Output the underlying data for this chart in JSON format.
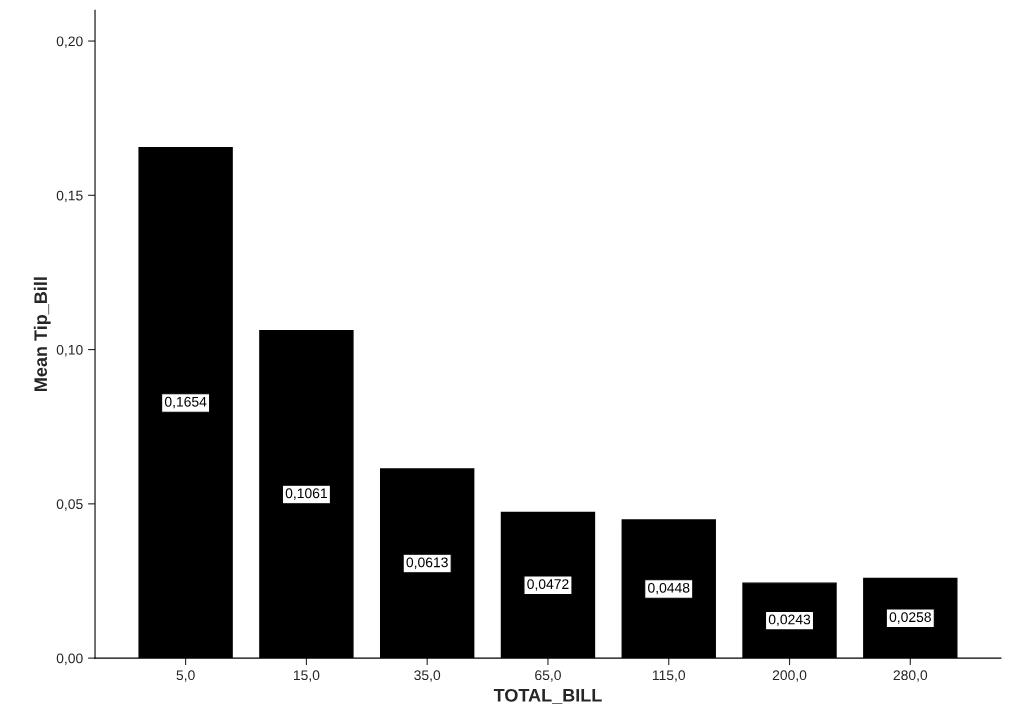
{
  "chart_data": {
    "type": "bar",
    "xlabel": "TOTAL_BILL",
    "ylabel": "Mean Tip_Bill",
    "categories": [
      "5,0",
      "15,0",
      "35,0",
      "65,0",
      "115,0",
      "200,0",
      "280,0"
    ],
    "values": [
      0.1654,
      0.1061,
      0.0613,
      0.0472,
      0.0448,
      0.0243,
      0.0258
    ],
    "value_labels": [
      "0,1654",
      "0,1061",
      "0,0613",
      "0,0472",
      "0,0448",
      "0,0243",
      "0,0258"
    ],
    "color": "#000000",
    "ylim": [
      0,
      0.21
    ],
    "yticks": [
      {
        "value": 0,
        "label": "0,00"
      },
      {
        "value": 0.05,
        "label": "0,05"
      },
      {
        "value": 0.1,
        "label": "0,10"
      },
      {
        "value": 0.15,
        "label": "0,15"
      },
      {
        "value": 0.2,
        "label": "0,20"
      }
    ],
    "grid": false
  }
}
